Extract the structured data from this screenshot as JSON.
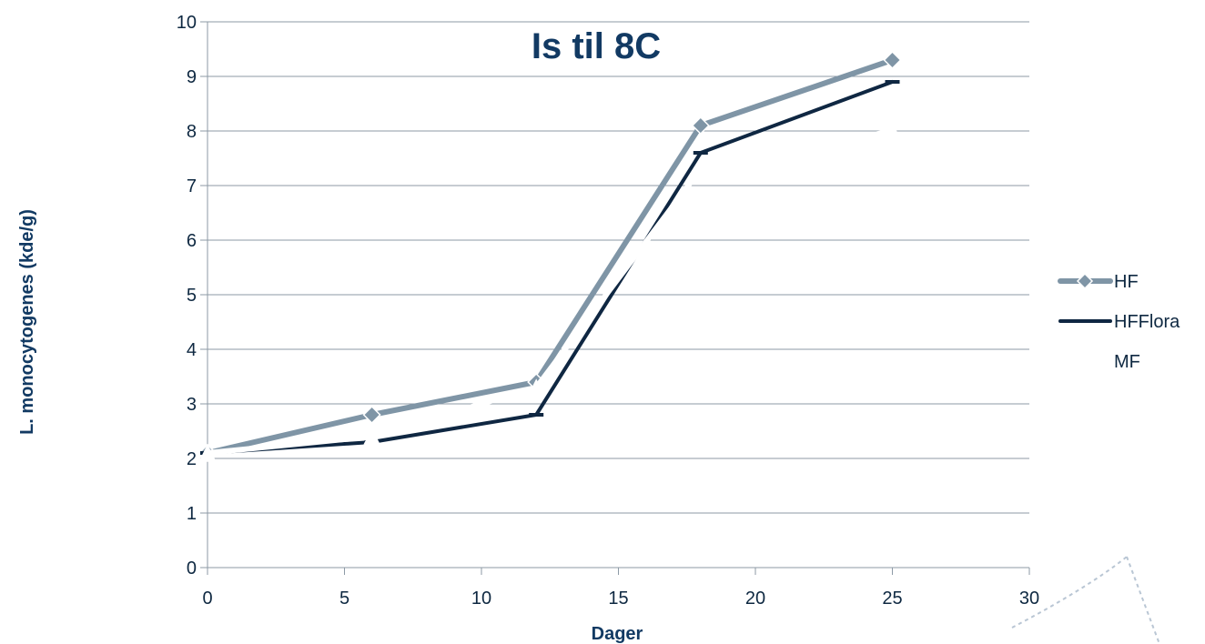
{
  "chart_data": {
    "type": "line",
    "title": "Is til 8C",
    "xlabel": "Dager",
    "ylabel": "L. monocytogenes (kde/g)",
    "xlim": [
      0,
      30
    ],
    "ylim": [
      0,
      10
    ],
    "x_ticks": [
      "0",
      "5",
      "10",
      "15",
      "20",
      "25",
      "30"
    ],
    "y_ticks": [
      "0",
      "1",
      "2",
      "3",
      "4",
      "5",
      "6",
      "7",
      "8",
      "9",
      "10"
    ],
    "grid": true,
    "legend_position": "right",
    "series": [
      {
        "name": "HF",
        "color": "#7f95a6",
        "marker": "diamond",
        "x": [
          0,
          6,
          12,
          18,
          25
        ],
        "y": [
          2.1,
          2.8,
          3.4,
          8.1,
          9.3
        ]
      },
      {
        "name": "HFFlora",
        "color": "#0f2742",
        "marker": "dash",
        "x": [
          0,
          6,
          12,
          18,
          25
        ],
        "y": [
          2.1,
          2.3,
          2.8,
          7.6,
          8.9
        ]
      },
      {
        "name": "MF",
        "color": "#ffffff",
        "marker": "triangle",
        "x": [
          0,
          6,
          12,
          18,
          25
        ],
        "y": [
          2.1,
          2.4,
          3.3,
          7.3,
          8.0
        ]
      }
    ]
  }
}
